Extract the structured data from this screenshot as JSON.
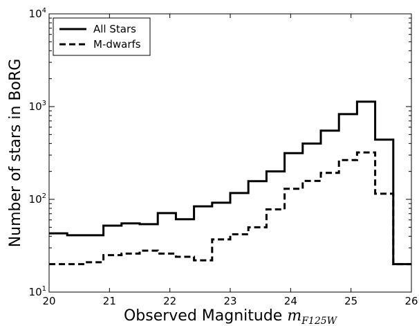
{
  "chart_data": {
    "type": "line",
    "title": "",
    "xlabel_text": "Observed Magnitude ",
    "xlabel_math": "m",
    "xlabel_sub": "F125W",
    "ylabel": "Number of stars in BoRG",
    "xlim": [
      20,
      26
    ],
    "ylim": [
      10,
      10000
    ],
    "yscale": "log",
    "x_ticks": [
      "20",
      "21",
      "22",
      "23",
      "24",
      "25",
      "26"
    ],
    "y_ticks": [
      {
        "base": "10",
        "exp": "1"
      },
      {
        "base": "10",
        "exp": "2"
      },
      {
        "base": "10",
        "exp": "3"
      },
      {
        "base": "10",
        "exp": "4"
      }
    ],
    "legend_position": "top-left",
    "bin_edges": [
      20.0,
      20.3,
      20.6,
      20.9,
      21.2,
      21.5,
      21.8,
      22.1,
      22.4,
      22.7,
      23.0,
      23.3,
      23.6,
      23.9,
      24.2,
      24.5,
      24.8,
      25.1,
      25.4,
      25.7,
      26.0
    ],
    "series": [
      {
        "name": "All Stars",
        "style": "solid",
        "values": [
          43,
          41,
          41,
          52,
          55,
          54,
          71,
          61,
          84,
          92,
          117,
          157,
          200,
          315,
          400,
          550,
          830,
          1130,
          440,
          20
        ]
      },
      {
        "name": "M-dwarfs",
        "style": "dashed",
        "values": [
          20,
          20,
          21,
          25,
          26,
          28,
          26,
          24,
          22,
          37,
          42,
          50,
          78,
          130,
          158,
          193,
          265,
          320,
          115,
          20
        ]
      }
    ]
  }
}
